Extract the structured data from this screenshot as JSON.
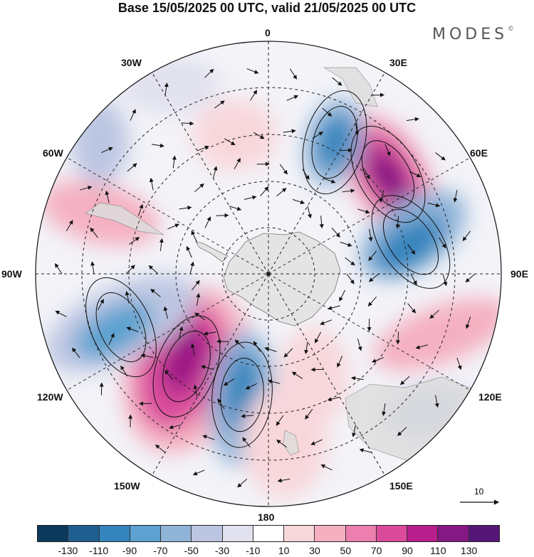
{
  "title": "Base 15/05/2025 00 UTC, valid 21/05/2025 00 UTC",
  "logo": {
    "text": "MODES",
    "mark": "©"
  },
  "longitude_labels": {
    "top": "0",
    "bottom": "180",
    "left": "90W",
    "right": "90E",
    "w30": "30W",
    "w60": "60W",
    "w120": "120W",
    "w150": "150W",
    "e30": "30E",
    "e60": "60E",
    "e120": "120E",
    "e150": "150E"
  },
  "reference_vector": {
    "label": "10"
  },
  "colorbar": {
    "colors": [
      "#0b3a5c",
      "#1f5f90",
      "#3485bd",
      "#5ca1cf",
      "#8fb4d8",
      "#bcc6e2",
      "#e1e1ef",
      "#ffffff",
      "#f8d7db",
      "#f4b0c1",
      "#ec7fae",
      "#db4b9c",
      "#b81e8c",
      "#861883",
      "#541677"
    ],
    "ticks": [
      "-130",
      "-110",
      "-90",
      "-70",
      "-50",
      "-30",
      "-10",
      "10",
      "30",
      "50",
      "70",
      "90",
      "110",
      "130"
    ]
  },
  "colors": {
    "land": "#e4e4e4",
    "positive": "#c21b8c",
    "negative": "#2e7cb8"
  }
}
